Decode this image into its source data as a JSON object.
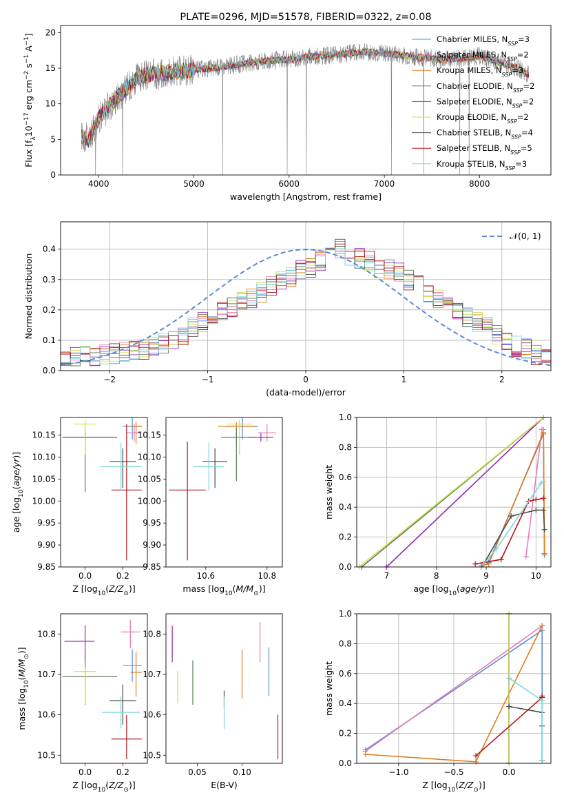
{
  "colors": {
    "chabrier_miles": "#5b8ad6",
    "salpeter_miles": "#e87bb4",
    "kroupa_miles": "#e07b1a",
    "chabrier_elodie": "#5e7a5a",
    "salpeter_elodie": "#9526b3",
    "kroupa_elodie": "#c8e04a",
    "chabrier_stelib": "#4a4a4a",
    "salpeter_stelib": "#b0151a",
    "kroupa_stelib": "#7fd6d8",
    "data": "#808080",
    "normal": "#5b8ad6"
  },
  "chart_data": [
    {
      "type": "line",
      "title": "PLATE=0296, MJD=51578, FIBERID=0322, z=0.08",
      "xlabel": "wavelength [Angstrom, rest frame]",
      "ylabel": "Flux [f$_\\lambda$10$^{-17}$ erg cm$^{-2}$ s$^{-1}$ A$^{-1}$]",
      "xlim": [
        3600,
        8750
      ],
      "ylim": [
        0,
        21
      ],
      "xticks": [
        "4000",
        "5000",
        "6000",
        "7000",
        "8000"
      ],
      "yticks": [
        "0",
        "5",
        "10",
        "15",
        "20"
      ],
      "legend_position": "right",
      "legend": [
        "Chabrier MILES, N_SSP=3",
        "Salpeter MILES, N_SSP=2",
        "Kroupa MILES, N_SSP=3",
        "Chabrier ELODIE, N_SSP=2",
        "Salpeter ELODIE, N_SSP=2",
        "Kroupa ELODIE, N_SSP=2",
        "Chabrier STELIB, N_SSP=4",
        "Salpeter STELIB, N_SSP=5",
        "Kroupa STELIB, N_SSP=3"
      ],
      "continuum": {
        "x": [
          3820,
          3900,
          3950,
          4000,
          4100,
          4200,
          4300,
          4400,
          4500,
          4600,
          4800,
          5000,
          5200,
          5400,
          5600,
          5800,
          6000,
          6200,
          6400,
          6600,
          6800,
          7000,
          7200,
          7400,
          7600,
          7800,
          8000,
          8200,
          8400,
          8520
        ],
        "y": [
          5.5,
          5.0,
          6.5,
          8.0,
          9.5,
          11.0,
          12.3,
          13.5,
          14.0,
          14.2,
          14.5,
          14.8,
          15.0,
          15.4,
          15.8,
          16.1,
          16.2,
          16.6,
          16.8,
          17.0,
          17.3,
          17.1,
          16.8,
          16.5,
          16.2,
          16.4,
          16.7,
          15.8,
          15.0,
          14.0
        ]
      }
    },
    {
      "type": "bar",
      "xlabel": "(data-model)/error",
      "ylabel": "Normed distribution",
      "xlim": [
        -2.5,
        2.5
      ],
      "ylim": [
        0,
        0.49
      ],
      "xticks": [
        "−2",
        "−1",
        "0",
        "1",
        "2"
      ],
      "yticks": [
        "0.0",
        "0.1",
        "0.2",
        "0.3",
        "0.4"
      ],
      "grid": true,
      "legend_position": "top-right",
      "normal_label": "𝒩(0, 1)",
      "bin_edges_start": -2.5,
      "bin_width": 0.1,
      "mean_hist": [
        0.04,
        0.045,
        0.05,
        0.05,
        0.05,
        0.055,
        0.06,
        0.065,
        0.07,
        0.075,
        0.09,
        0.1,
        0.12,
        0.14,
        0.16,
        0.18,
        0.2,
        0.21,
        0.23,
        0.24,
        0.26,
        0.28,
        0.3,
        0.31,
        0.33,
        0.34,
        0.36,
        0.38,
        0.4,
        0.38,
        0.37,
        0.36,
        0.34,
        0.33,
        0.32,
        0.3,
        0.28,
        0.26,
        0.24,
        0.22,
        0.2,
        0.18,
        0.16,
        0.14,
        0.12,
        0.1,
        0.08,
        0.07,
        0.05,
        0.04
      ]
    },
    {
      "type": "scatter",
      "xlabel": "Z [log$_{10}$(Z/Z$_\\odot$)]",
      "ylabel": "age  [log$_{10}$(age/yr)]",
      "xlim": [
        -0.13,
        0.33
      ],
      "ylim": [
        9.85,
        10.19
      ],
      "xticks": [
        "0.0",
        "0.2"
      ],
      "yticks": [
        "9.85",
        "9.90",
        "9.95",
        "10.00",
        "10.05",
        "10.10",
        "10.15"
      ],
      "points": [
        {
          "model": "chabrier_miles",
          "x": 0.25,
          "y": 10.17,
          "xerr": 0.05,
          "yerr": [
            0.03,
            0.02
          ]
        },
        {
          "model": "salpeter_miles",
          "x": 0.26,
          "y": 10.155,
          "xerr": 0.04,
          "yerr": [
            0.02,
            0.02
          ]
        },
        {
          "model": "kroupa_miles",
          "x": 0.27,
          "y": 10.17,
          "xerr": 0.03,
          "yerr": [
            0.04,
            0.01
          ]
        },
        {
          "model": "chabrier_elodie",
          "x": 0.0,
          "y": 10.14,
          "xerr": 0.0,
          "yerr": [
            0.12,
            0.02
          ]
        },
        {
          "model": "salpeter_elodie",
          "x": 0.0,
          "y": 10.145,
          "xerr": [
            0.12,
            0.17
          ],
          "yerr": [
            0.01,
            0.01
          ]
        },
        {
          "model": "kroupa_elodie",
          "x": 0.0,
          "y": 10.175,
          "xerr": 0.06,
          "yerr": [
            0.07,
            0.01
          ]
        },
        {
          "model": "chabrier_stelib",
          "x": 0.2,
          "y": 10.09,
          "xerr": 0.07,
          "yerr": [
            0.06,
            0.03
          ]
        },
        {
          "model": "salpeter_stelib",
          "x": 0.22,
          "y": 10.025,
          "xerr": 0.08,
          "yerr": [
            0.16,
            0.15
          ]
        },
        {
          "model": "kroupa_stelib",
          "x": 0.19,
          "y": 10.078,
          "xerr": 0.11,
          "yerr": [
            0.055,
            0.055
          ]
        }
      ]
    },
    {
      "type": "scatter",
      "xlabel": "mass [log$_{10}$(M/M$_\\odot$)]",
      "ylabel": "",
      "xlim": [
        10.47,
        10.85
      ],
      "ylim": [
        9.85,
        10.19
      ],
      "xticks": [
        "10.6",
        "10.8"
      ],
      "yticks": [
        "9.85",
        "9.90",
        "9.95",
        "10.00",
        "10.05",
        "10.10",
        "10.15"
      ],
      "points": [
        {
          "model": "chabrier_miles",
          "x": 10.72,
          "y": 10.17,
          "xerr": 0.05,
          "yerr": [
            0.03,
            0.02
          ]
        },
        {
          "model": "salpeter_miles",
          "x": 10.8,
          "y": 10.155,
          "xerr": 0.03,
          "yerr": [
            0.02,
            0.02
          ]
        },
        {
          "model": "kroupa_miles",
          "x": 10.7,
          "y": 10.17,
          "xerr": 0.06,
          "yerr": [
            0.04,
            0.01
          ]
        },
        {
          "model": "chabrier_elodie",
          "x": 10.7,
          "y": 10.145,
          "xerr": 0.05,
          "yerr": [
            0.1,
            0.02
          ]
        },
        {
          "model": "salpeter_elodie",
          "x": 10.78,
          "y": 10.145,
          "xerr": 0.04,
          "yerr": [
            0.01,
            0.01
          ]
        },
        {
          "model": "kroupa_elodie",
          "x": 10.71,
          "y": 10.175,
          "xerr": 0.04,
          "yerr": [
            0.07,
            0.01
          ]
        },
        {
          "model": "chabrier_stelib",
          "x": 10.63,
          "y": 10.09,
          "xerr": 0.04,
          "yerr": [
            0.06,
            0.03
          ]
        },
        {
          "model": "salpeter_stelib",
          "x": 10.54,
          "y": 10.025,
          "xerr": 0.06,
          "yerr": [
            0.16,
            0.11
          ]
        },
        {
          "model": "kroupa_stelib",
          "x": 10.61,
          "y": 10.078,
          "xerr": 0.05,
          "yerr": [
            0.055,
            0.055
          ]
        }
      ]
    },
    {
      "type": "line",
      "xlabel": "age  [log$_{10}$(age/yr)]",
      "ylabel": "mass weight",
      "xlim": [
        6.4,
        10.3
      ],
      "ylim": [
        0,
        1
      ],
      "xticks": [
        "7",
        "8",
        "9",
        "10"
      ],
      "yticks": [
        "0.0",
        "0.2",
        "0.4",
        "0.6",
        "0.8",
        "1.0"
      ],
      "grid": true,
      "series": [
        {
          "model": "chabrier_miles",
          "x": [
            8.9,
            9.05,
            10.15,
            10.17
          ],
          "y": [
            0.0,
            0.03,
            0.89,
            0.08
          ]
        },
        {
          "model": "salpeter_miles",
          "x": [
            9.8,
            10.12,
            10.15
          ],
          "y": [
            0.07,
            0.92,
            0.92
          ]
        },
        {
          "model": "kroupa_miles",
          "x": [
            8.9,
            9.05,
            10.15,
            10.17
          ],
          "y": [
            0.01,
            0.02,
            0.9,
            0.09
          ]
        },
        {
          "model": "chabrier_elodie",
          "x": [
            6.5,
            10.15
          ],
          "y": [
            0.0,
            1.0
          ]
        },
        {
          "model": "salpeter_elodie",
          "x": [
            7.0,
            10.15
          ],
          "y": [
            0.0,
            1.0
          ]
        },
        {
          "model": "kroupa_elodie",
          "x": [
            6.45,
            10.15
          ],
          "y": [
            0.0,
            1.0
          ]
        },
        {
          "model": "chabrier_stelib",
          "x": [
            8.95,
            9.5,
            10.0,
            10.15,
            10.17
          ],
          "y": [
            0.02,
            0.34,
            0.38,
            0.38,
            0.25
          ]
        },
        {
          "model": "salpeter_stelib",
          "x": [
            8.78,
            9.3,
            9.85,
            10.0,
            10.15
          ],
          "y": [
            0.02,
            0.05,
            0.44,
            0.45,
            0.46
          ]
        },
        {
          "model": "kroupa_stelib",
          "x": [
            8.95,
            9.2,
            10.1,
            10.15
          ],
          "y": [
            0.02,
            0.12,
            0.56,
            0.57
          ]
        }
      ]
    },
    {
      "type": "scatter",
      "xlabel": "Z [log$_{10}$(Z/Z$_\\odot$)]",
      "ylabel": "mass [log$_{10}$(M/M$_\\odot$)]",
      "xlim": [
        -0.13,
        0.33
      ],
      "ylim": [
        10.48,
        10.85
      ],
      "xticks": [
        "0.0",
        "0.2"
      ],
      "yticks": [
        "10.5",
        "10.6",
        "10.7",
        "10.8"
      ],
      "points": [
        {
          "model": "chabrier_miles",
          "x": 0.25,
          "y": 10.722,
          "xerr": 0.05,
          "yerr": [
            0.04,
            0.04
          ]
        },
        {
          "model": "salpeter_miles",
          "x": 0.24,
          "y": 10.805,
          "xerr": 0.05,
          "yerr": [
            0.04,
            0.03
          ]
        },
        {
          "model": "kroupa_miles",
          "x": 0.27,
          "y": 10.705,
          "xerr": 0.03,
          "yerr": [
            0.06,
            0.05
          ]
        },
        {
          "model": "chabrier_elodie",
          "x": 0.0,
          "y": 10.695,
          "xerr": [
            0.12,
            0.17
          ],
          "yerr": [
            0.07,
            0.04
          ]
        },
        {
          "model": "salpeter_elodie",
          "x": 0.0,
          "y": 10.782,
          "xerr": [
            0.11,
            0.05
          ],
          "yerr": [
            0.05,
            0.04
          ]
        },
        {
          "model": "kroupa_elodie",
          "x": 0.0,
          "y": 10.707,
          "xerr": 0.06,
          "yerr": [
            0.08,
            0.01
          ]
        },
        {
          "model": "chabrier_stelib",
          "x": 0.2,
          "y": 10.635,
          "xerr": 0.07,
          "yerr": [
            0.06,
            0.04
          ]
        },
        {
          "model": "salpeter_stelib",
          "x": 0.22,
          "y": 10.54,
          "xerr": 0.08,
          "yerr": [
            0.05,
            0.06
          ]
        },
        {
          "model": "kroupa_stelib",
          "x": 0.19,
          "y": 10.606,
          "xerr": 0.1,
          "yerr": [
            0.04,
            0.04
          ]
        }
      ]
    },
    {
      "type": "scatter",
      "xlabel": "E(B-V)",
      "ylabel": "",
      "xlim": [
        0.015,
        0.145
      ],
      "ylim": [
        10.48,
        10.85
      ],
      "xticks": [
        "0.05",
        "0.10"
      ],
      "yticks": [
        "10.5",
        "10.6",
        "10.7",
        "10.8"
      ],
      "points": [
        {
          "model": "salpeter_elodie",
          "x": 0.022,
          "y": 10.78,
          "yerr": [
            0.05,
            0.04
          ]
        },
        {
          "model": "kroupa_elodie",
          "x": 0.028,
          "y": 10.668,
          "yerr": [
            0.04,
            0.04
          ]
        },
        {
          "model": "chabrier_elodie",
          "x": 0.045,
          "y": 10.68,
          "yerr": [
            0.055,
            0.055
          ]
        },
        {
          "model": "chabrier_stelib",
          "x": 0.08,
          "y": 10.64,
          "yerr": [
            0.02,
            0.02
          ]
        },
        {
          "model": "kroupa_stelib",
          "x": 0.08,
          "y": 10.605,
          "yerr": [
            0.04,
            0.04
          ]
        },
        {
          "model": "kroupa_miles",
          "x": 0.1,
          "y": 10.7,
          "yerr": [
            0.06,
            0.06
          ]
        },
        {
          "model": "salpeter_miles",
          "x": 0.12,
          "y": 10.78,
          "yerr": [
            0.05,
            0.05
          ]
        },
        {
          "model": "chabrier_miles",
          "x": 0.13,
          "y": 10.707,
          "yerr": [
            0.06,
            0.06
          ]
        },
        {
          "model": "salpeter_stelib",
          "x": 0.14,
          "y": 10.545,
          "yerr": [
            0.055,
            0.055
          ]
        }
      ]
    },
    {
      "type": "line",
      "xlabel": "Z [log$_{10}$(Z/Z$_\\odot$)]",
      "ylabel": "mass weight",
      "xlim": [
        -1.38,
        0.38
      ],
      "ylim": [
        0,
        1
      ],
      "xticks": [
        "−1.0",
        "−0.5",
        "0.0"
      ],
      "yticks": [
        "0.0",
        "0.2",
        "0.4",
        "0.6",
        "0.8",
        "1.0"
      ],
      "grid": true,
      "series": [
        {
          "model": "chabrier_miles",
          "x": [
            -1.3,
            0.3,
            0.3
          ],
          "y": [
            0.09,
            0.89,
            0.02
          ]
        },
        {
          "model": "salpeter_miles",
          "x": [
            -1.3,
            0.3
          ],
          "y": [
            0.08,
            0.92
          ]
        },
        {
          "model": "kroupa_miles",
          "x": [
            -1.3,
            -0.3,
            0.3
          ],
          "y": [
            0.06,
            0.01,
            0.92
          ]
        },
        {
          "model": "chabrier_elodie",
          "x": [
            0.0,
            0.0
          ],
          "y": [
            0.0,
            1.0
          ]
        },
        {
          "model": "salpeter_elodie",
          "x": [
            0.0,
            0.0
          ],
          "y": [
            0.0,
            1.0
          ]
        },
        {
          "model": "kroupa_elodie",
          "x": [
            0.0,
            0.0
          ],
          "y": [
            0.0,
            1.0
          ]
        },
        {
          "model": "chabrier_stelib",
          "x": [
            0.0,
            0.3,
            0.3,
            0.3
          ],
          "y": [
            0.38,
            0.34,
            0.25,
            0.02
          ]
        },
        {
          "model": "salpeter_stelib",
          "x": [
            -0.3,
            0.3,
            0.3
          ],
          "y": [
            0.05,
            0.44,
            0.45
          ]
        },
        {
          "model": "kroupa_stelib",
          "x": [
            0.0,
            0.3,
            0.3
          ],
          "y": [
            0.57,
            0.42,
            0.02
          ]
        }
      ]
    }
  ]
}
